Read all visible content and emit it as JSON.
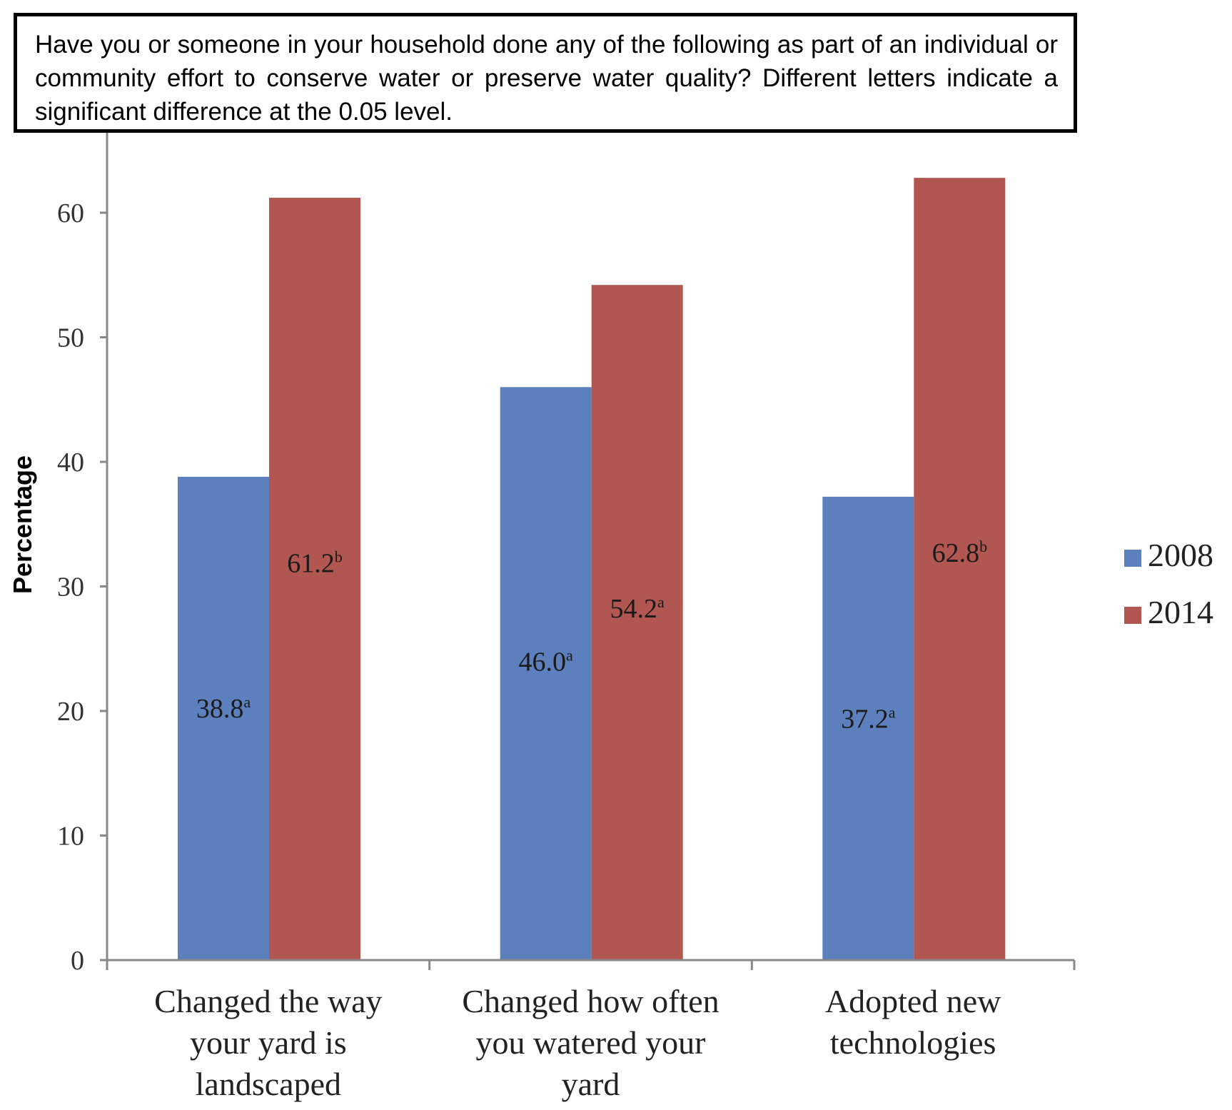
{
  "question": "Have you or someone in your household done any of the following as part of an individual or community effort to conserve water or preserve water quality? Different letters indicate a significant difference at the 0.05 level.",
  "colors": {
    "s2008": "#5b80bd",
    "s2014": "#b15651"
  },
  "chart_data": {
    "type": "bar",
    "categories": [
      [
        "Changed the way",
        "your yard is",
        "landscaped"
      ],
      [
        "Changed how often",
        "you watered your",
        "yard"
      ],
      [
        "Adopted new",
        "technologies"
      ]
    ],
    "series": [
      {
        "name": "2008",
        "values": [
          38.8,
          46.0,
          37.2
        ],
        "labels": [
          "38.8",
          "46.0",
          "37.2"
        ],
        "letters": [
          "a",
          "a",
          "a"
        ]
      },
      {
        "name": "2014",
        "values": [
          61.2,
          54.2,
          62.8
        ],
        "labels": [
          "61.2",
          "54.2",
          "62.8"
        ],
        "letters": [
          "b",
          "a",
          "b"
        ]
      }
    ],
    "ylabel": "Percentage",
    "ylim": [
      0,
      65
    ],
    "yticks": [
      0,
      10,
      20,
      30,
      40,
      50,
      60
    ],
    "grid": false,
    "legend": "right"
  }
}
